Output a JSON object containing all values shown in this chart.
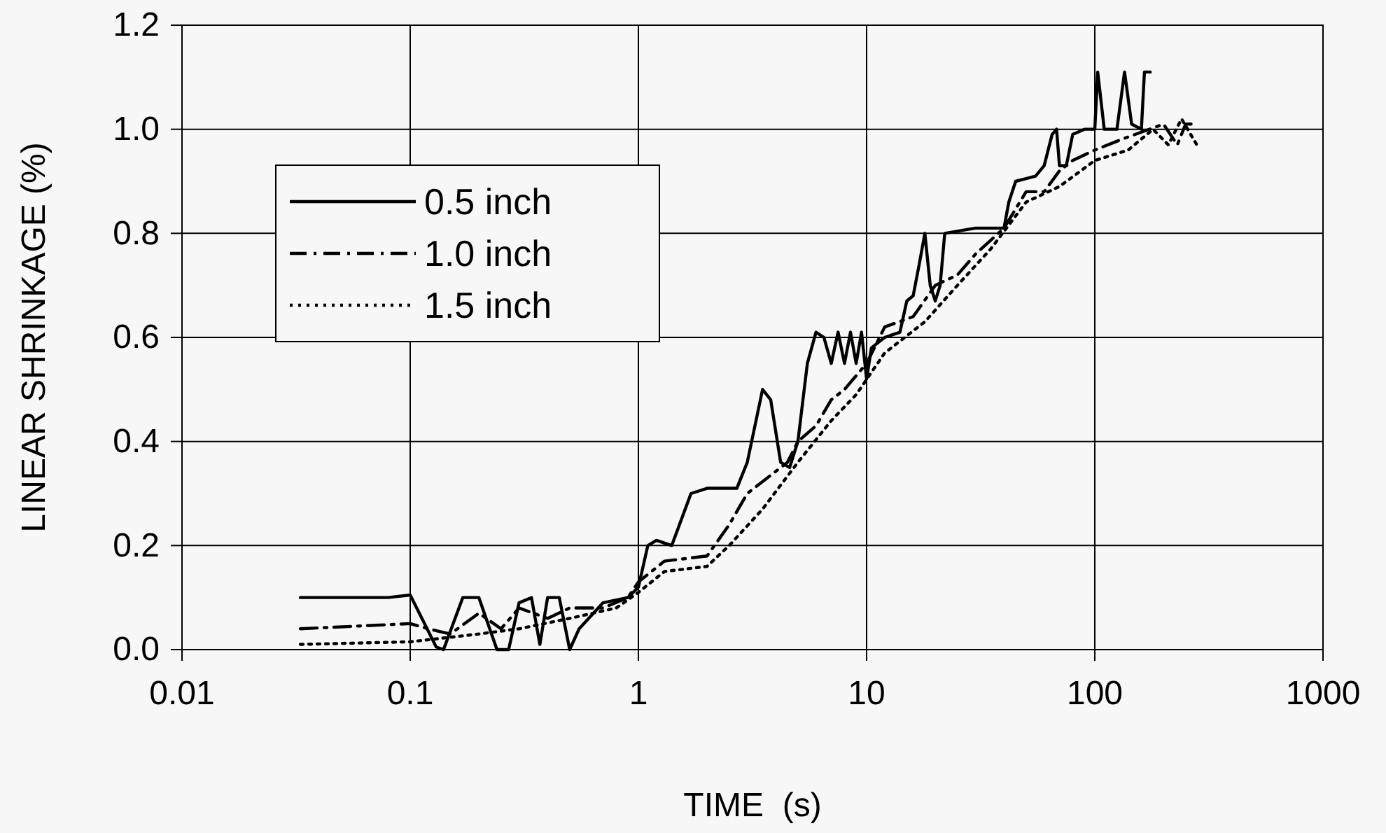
{
  "chart_data": {
    "type": "line",
    "xlabel": "TIME  (s)",
    "ylabel": "LINEAR SHRINKAGE (%)",
    "log": "x",
    "grid": true,
    "legend": "top left",
    "marker": "none",
    "xlim": [
      0.01,
      1000
    ],
    "xticks": [
      0.01,
      0.1,
      1,
      10,
      100,
      1000
    ],
    "ylim": [
      0,
      1.2
    ],
    "yticks": [
      {
        "value": 0,
        "label": "0.0"
      },
      0.2,
      0.4,
      0.6,
      0.8,
      {
        "value": 1,
        "label": "1.0"
      },
      1.2
    ],
    "series": [
      {
        "name": "0.5 inch",
        "color": "#000000",
        "line_style": "solid",
        "x": [
          0.033,
          0.08,
          0.1,
          0.13,
          0.14,
          0.17,
          0.2,
          0.24,
          0.27,
          0.3,
          0.34,
          0.37,
          0.4,
          0.45,
          0.5,
          0.55,
          0.7,
          0.9,
          1.0,
          1.1,
          1.2,
          1.4,
          1.7,
          2.0,
          2.7,
          3.0,
          3.5,
          3.8,
          4.2,
          4.6,
          5.0,
          5.5,
          6.0,
          6.5,
          7.0,
          7.5,
          8.0,
          8.5,
          9.0,
          9.5,
          10,
          10.5,
          12,
          14,
          15,
          16,
          17,
          18,
          19,
          20,
          21,
          22,
          30,
          40,
          42,
          45,
          55,
          60,
          65,
          68,
          70,
          75,
          80,
          90,
          100,
          103,
          110,
          125,
          135,
          145,
          160,
          165,
          175
        ],
        "values": [
          0.1,
          0.1,
          0.105,
          0.005,
          0.0,
          0.1,
          0.1,
          0.0,
          0.0,
          0.09,
          0.1,
          0.01,
          0.1,
          0.1,
          0.0,
          0.04,
          0.09,
          0.1,
          0.12,
          0.2,
          0.21,
          0.2,
          0.3,
          0.31,
          0.31,
          0.36,
          0.5,
          0.48,
          0.36,
          0.35,
          0.4,
          0.55,
          0.61,
          0.6,
          0.55,
          0.61,
          0.55,
          0.61,
          0.55,
          0.61,
          0.52,
          0.58,
          0.6,
          0.61,
          0.67,
          0.68,
          0.74,
          0.8,
          0.7,
          0.67,
          0.7,
          0.8,
          0.81,
          0.81,
          0.86,
          0.9,
          0.91,
          0.93,
          0.99,
          1.0,
          0.93,
          0.93,
          0.99,
          1.0,
          1.0,
          1.11,
          1.0,
          1.0,
          1.11,
          1.01,
          1.0,
          1.11,
          1.11
        ]
      },
      {
        "name": "1.0 inch",
        "color": "#000000",
        "line_style": "dashdot",
        "x": [
          0.033,
          0.1,
          0.12,
          0.15,
          0.2,
          0.25,
          0.3,
          0.4,
          0.5,
          0.7,
          0.9,
          1.0,
          1.3,
          2.0,
          2.5,
          3.0,
          4.5,
          5.0,
          6.0,
          7.0,
          8.0,
          10,
          12,
          16,
          20,
          25,
          30,
          40,
          50,
          60,
          70,
          80,
          100,
          130,
          200,
          230,
          250,
          280
        ],
        "values": [
          0.04,
          0.05,
          0.04,
          0.03,
          0.07,
          0.04,
          0.08,
          0.06,
          0.08,
          0.08,
          0.1,
          0.13,
          0.17,
          0.18,
          0.24,
          0.3,
          0.36,
          0.4,
          0.43,
          0.48,
          0.5,
          0.55,
          0.62,
          0.64,
          0.7,
          0.72,
          0.76,
          0.81,
          0.88,
          0.88,
          0.92,
          0.94,
          0.96,
          0.98,
          1.01,
          0.97,
          1.01,
          1.01
        ]
      },
      {
        "name": "1.5 inch",
        "color": "#000000",
        "line_style": "dotted",
        "x": [
          0.033,
          0.1,
          0.2,
          0.3,
          0.5,
          0.8,
          1.0,
          1.3,
          2.0,
          2.5,
          3.5,
          5.0,
          7.0,
          9.0,
          12,
          18,
          25,
          35,
          50,
          70,
          100,
          140,
          180,
          210,
          240,
          280
        ],
        "values": [
          0.01,
          0.015,
          0.03,
          0.04,
          0.06,
          0.08,
          0.11,
          0.15,
          0.16,
          0.2,
          0.27,
          0.36,
          0.44,
          0.49,
          0.57,
          0.63,
          0.7,
          0.77,
          0.86,
          0.89,
          0.94,
          0.96,
          1.0,
          0.97,
          1.02,
          0.97
        ]
      }
    ]
  }
}
